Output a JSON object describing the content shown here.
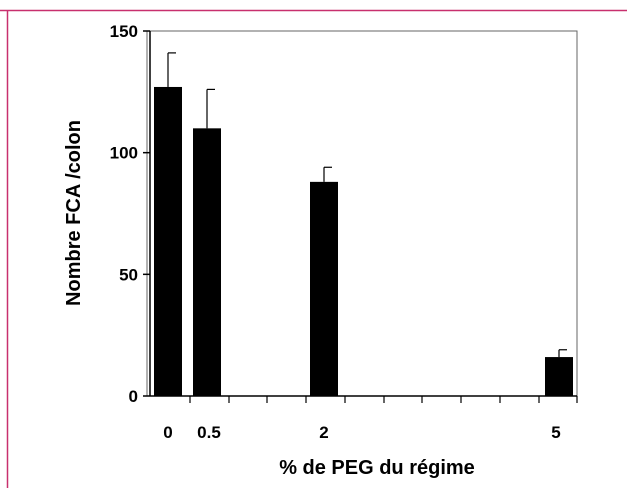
{
  "colors": {
    "frame": "#c8306e",
    "bar": "#000000",
    "axis": "#000000",
    "background": "#ffffff"
  },
  "chart_data": {
    "type": "bar",
    "title": "",
    "xlabel": "% de PEG du régime",
    "ylabel": "Nombre FCA /colon",
    "ylim": [
      0,
      150
    ],
    "y_ticks": [
      "0",
      "50",
      "100",
      "150"
    ],
    "x_ticks": [
      "0",
      "0.5",
      "2",
      "5"
    ],
    "x_numeric": [
      0,
      0.5,
      2,
      5
    ],
    "values": [
      127,
      110,
      88,
      16
    ],
    "error_upper": [
      141,
      126,
      94,
      19
    ],
    "grid": false,
    "legend": "none"
  }
}
